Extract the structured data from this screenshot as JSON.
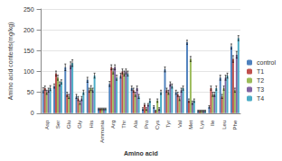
{
  "chart_data": {
    "type": "bar",
    "x_label": "Amino acid",
    "y_label": "Amino acid contents(mg/kg)",
    "categories": [
      "Asp",
      "Ser",
      "Glu",
      "Gly",
      "His",
      "Ammonia",
      "Arg",
      "Thr",
      "Ala",
      "Pro",
      "Cys",
      "Tyr",
      "Val",
      "Met",
      "Lys",
      "Ile",
      "Leu",
      "Phe"
    ],
    "series": [
      {
        "name": "control",
        "color": "#4f81bd",
        "values": [
          55,
          65,
          110,
          40,
          80,
          10,
          70,
          90,
          60,
          10,
          15,
          105,
          50,
          170,
          5,
          15,
          85,
          160
        ],
        "errors": [
          6,
          5,
          8,
          5,
          6,
          2,
          6,
          6,
          5,
          3,
          3,
          6,
          5,
          5,
          2,
          3,
          6,
          6
        ]
      },
      {
        "name": "T1",
        "color": "#c0504d",
        "values": [
          60,
          95,
          45,
          35,
          55,
          10,
          110,
          100,
          55,
          20,
          5,
          55,
          45,
          30,
          5,
          60,
          40,
          130
        ],
        "errors": [
          5,
          6,
          5,
          5,
          5,
          2,
          6,
          6,
          5,
          3,
          2,
          5,
          5,
          4,
          2,
          5,
          5,
          8
        ]
      },
      {
        "name": "T2",
        "color": "#9bbb59",
        "values": [
          50,
          85,
          40,
          25,
          60,
          10,
          100,
          95,
          45,
          10,
          30,
          50,
          35,
          130,
          5,
          45,
          60,
          55
        ],
        "errors": [
          5,
          6,
          5,
          4,
          6,
          2,
          6,
          6,
          5,
          3,
          4,
          5,
          5,
          6,
          2,
          5,
          5,
          5
        ]
      },
      {
        "name": "T3",
        "color": "#8064a2",
        "values": [
          55,
          70,
          115,
          35,
          55,
          10,
          110,
          100,
          60,
          20,
          10,
          70,
          55,
          25,
          5,
          45,
          85,
          140
        ],
        "errors": [
          5,
          5,
          8,
          5,
          5,
          2,
          6,
          6,
          5,
          3,
          3,
          5,
          5,
          4,
          2,
          5,
          6,
          8
        ]
      },
      {
        "name": "T4",
        "color": "#4bacc6",
        "values": [
          60,
          75,
          120,
          50,
          90,
          10,
          85,
          95,
          40,
          30,
          50,
          65,
          60,
          30,
          5,
          60,
          90,
          180
        ],
        "errors": [
          6,
          5,
          8,
          5,
          6,
          2,
          6,
          6,
          5,
          4,
          5,
          5,
          5,
          4,
          2,
          5,
          6,
          6
        ]
      }
    ],
    "ylim": [
      0,
      250
    ],
    "yticks": [
      0,
      50,
      100,
      150,
      200,
      250
    ],
    "grid": true,
    "legend": "right"
  }
}
